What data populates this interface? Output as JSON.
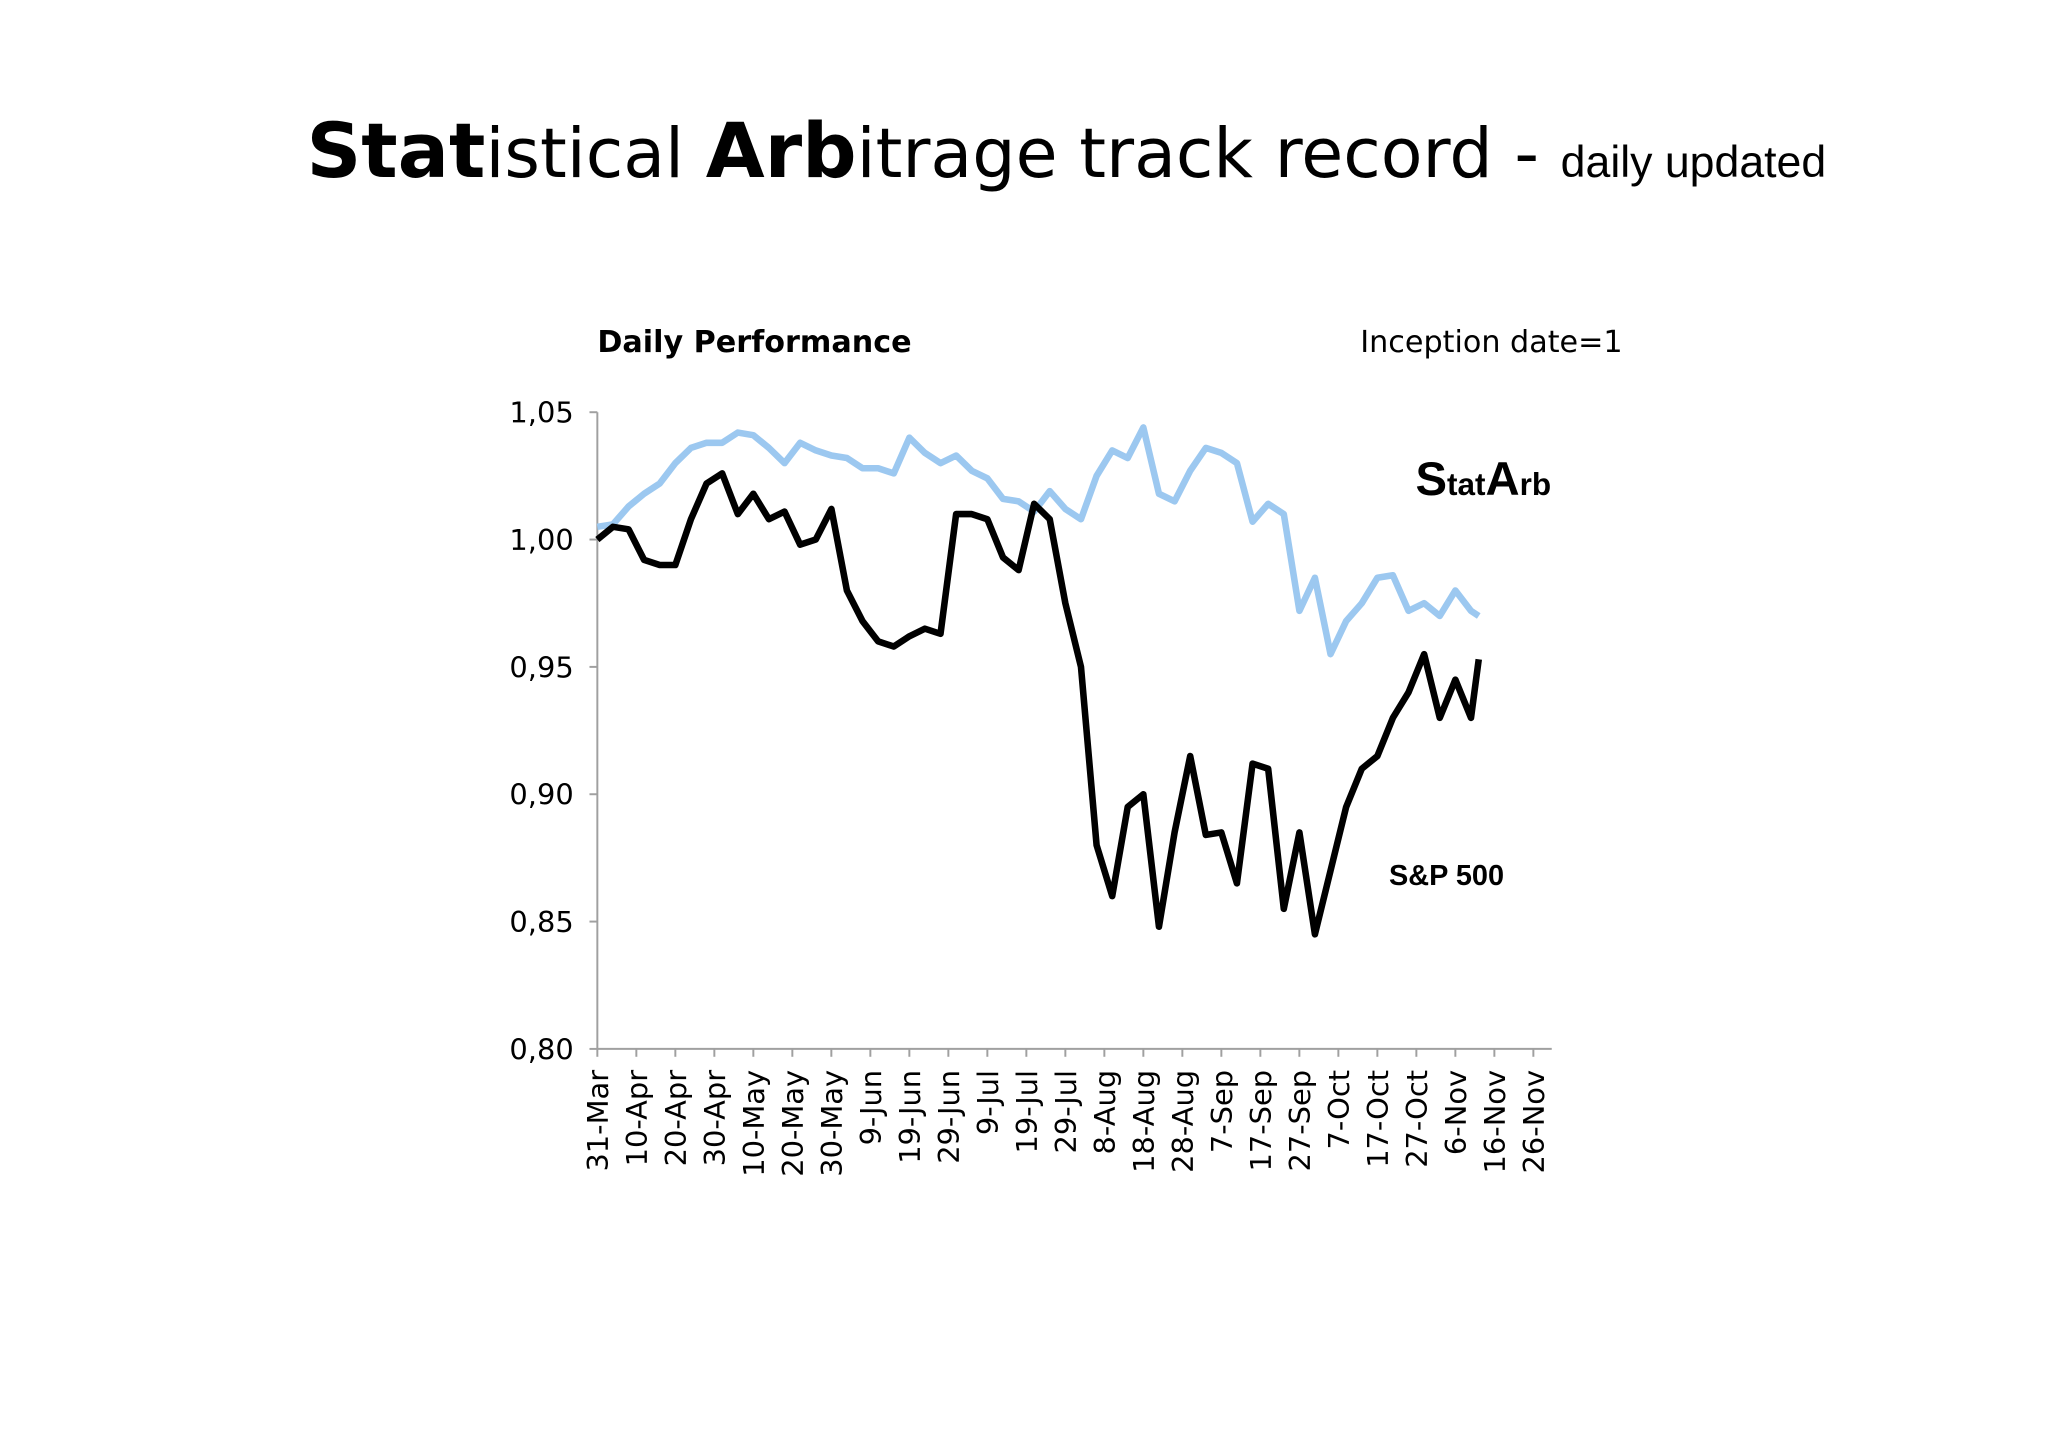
{
  "chart_data": {
    "type": "line",
    "title_parts": [
      "Stat",
      "istical ",
      "Arb",
      "itrage track record - ",
      "daily updated"
    ],
    "subtitle": "Daily Performance",
    "note": "Inception date=1",
    "annotations": {
      "statarb": [
        "S",
        "tat",
        "A",
        "rb"
      ],
      "sp500": "S&P 500"
    },
    "x": [
      "31-Mar",
      "4-Apr",
      "8-Apr",
      "12-Apr",
      "16-Apr",
      "20-Apr",
      "24-Apr",
      "28-Apr",
      "2-May",
      "6-May",
      "10-May",
      "14-May",
      "18-May",
      "22-May",
      "26-May",
      "30-May",
      "3-Jun",
      "7-Jun",
      "11-Jun",
      "15-Jun",
      "19-Jun",
      "23-Jun",
      "27-Jun",
      "1-Jul",
      "5-Jul",
      "9-Jul",
      "13-Jul",
      "17-Jul",
      "21-Jul",
      "25-Jul",
      "29-Jul",
      "2-Aug",
      "6-Aug",
      "10-Aug",
      "14-Aug",
      "18-Aug",
      "22-Aug",
      "26-Aug",
      "30-Aug",
      "3-Sep",
      "7-Sep",
      "11-Sep",
      "15-Sep",
      "19-Sep",
      "23-Sep",
      "27-Sep",
      "1-Oct",
      "5-Oct",
      "9-Oct",
      "13-Oct",
      "17-Oct",
      "21-Oct",
      "25-Oct",
      "29-Oct",
      "2-Nov",
      "6-Nov",
      "10-Nov",
      "12-Nov"
    ],
    "series": [
      {
        "name": "StatArb",
        "color": "#9cc8f0",
        "values": [
          1.005,
          1.006,
          1.013,
          1.018,
          1.022,
          1.03,
          1.036,
          1.038,
          1.038,
          1.042,
          1.041,
          1.036,
          1.03,
          1.038,
          1.035,
          1.033,
          1.032,
          1.028,
          1.028,
          1.026,
          1.04,
          1.034,
          1.03,
          1.033,
          1.027,
          1.024,
          1.016,
          1.015,
          1.011,
          1.019,
          1.012,
          1.008,
          1.025,
          1.035,
          1.032,
          1.044,
          1.018,
          1.015,
          1.027,
          1.036,
          1.034,
          1.03,
          1.007,
          1.014,
          1.01,
          0.972,
          0.985,
          0.955,
          0.968,
          0.975,
          0.985,
          0.986,
          0.972,
          0.975,
          0.97,
          0.98,
          0.972,
          0.97
        ]
      },
      {
        "name": "S&P 500",
        "color": "#000000",
        "values": [
          1.0,
          1.005,
          1.004,
          0.992,
          0.99,
          0.99,
          1.008,
          1.022,
          1.026,
          1.01,
          1.018,
          1.008,
          1.011,
          0.998,
          1.0,
          1.012,
          0.98,
          0.968,
          0.96,
          0.958,
          0.962,
          0.965,
          0.963,
          1.01,
          1.01,
          1.008,
          0.993,
          0.988,
          1.014,
          1.008,
          0.975,
          0.95,
          0.88,
          0.86,
          0.895,
          0.9,
          0.848,
          0.885,
          0.915,
          0.884,
          0.885,
          0.865,
          0.912,
          0.91,
          0.855,
          0.885,
          0.845,
          0.87,
          0.895,
          0.91,
          0.915,
          0.93,
          0.94,
          0.955,
          0.93,
          0.945,
          0.93,
          0.953
        ]
      }
    ],
    "xlim": [
      "31-Mar",
      "26-Nov"
    ],
    "xticks": [
      "31-Mar",
      "10-Apr",
      "20-Apr",
      "30-Apr",
      "10-May",
      "20-May",
      "30-May",
      "9-Jun",
      "19-Jun",
      "29-Jun",
      "9-Jul",
      "19-Jul",
      "29-Jul",
      "8-Aug",
      "18-Aug",
      "28-Aug",
      "7-Sep",
      "17-Sep",
      "27-Sep",
      "7-Oct",
      "17-Oct",
      "27-Oct",
      "6-Nov",
      "16-Nov",
      "26-Nov"
    ],
    "ylim": [
      0.8,
      1.05
    ],
    "yticks": [
      {
        "value": 0.8,
        "label": "0,80"
      },
      {
        "value": 0.85,
        "label": "0,85"
      },
      {
        "value": 0.9,
        "label": "0,90"
      },
      {
        "value": 0.95,
        "label": "0,95"
      },
      {
        "value": 1.0,
        "label": "1,00"
      },
      {
        "value": 1.05,
        "label": "1,05"
      }
    ],
    "grid": false
  }
}
